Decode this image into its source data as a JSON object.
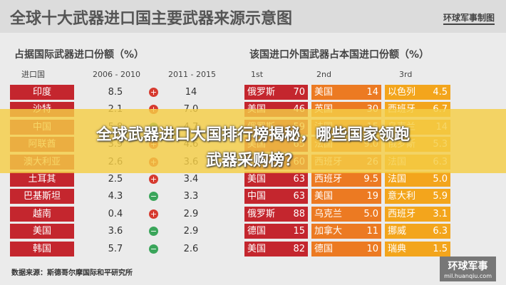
{
  "header": {
    "title": "全球十大武器进口国主要武器来源示意图",
    "logo": "环球军事制图"
  },
  "left": {
    "title": "占据国际武器进口份额（%）",
    "columns": [
      "进口国",
      "2006 - 2010",
      "2011 - 2015"
    ]
  },
  "right": {
    "title": "该国进口外国武器占本国进口份额（%）",
    "columns": [
      "1st",
      "2nd",
      "3rd"
    ]
  },
  "rows": [
    {
      "country": "印度",
      "p1": "8.5",
      "trend": "+",
      "p2": "14",
      "s": [
        [
          "俄罗斯",
          "70"
        ],
        [
          "美国",
          "14"
        ],
        [
          "以色列",
          "4.5"
        ]
      ]
    },
    {
      "country": "沙特",
      "p1": "2.1",
      "trend": "+",
      "p2": "7.0",
      "s": [
        [
          "美国",
          "46"
        ],
        [
          "英国",
          "30"
        ],
        [
          "西班牙",
          "6.7"
        ]
      ]
    },
    {
      "country": "中国",
      "p1": "5.8",
      "trend": "−",
      "p2": "4.7",
      "s": [
        [
          "俄罗斯",
          "59"
        ],
        [
          "法国",
          "15"
        ],
        [
          "乌克兰",
          "14"
        ]
      ]
    },
    {
      "country": "阿联酋",
      "p1": "3.9",
      "trend": "+",
      "p2": "4.6",
      "s": [
        [
          "美国",
          "65"
        ],
        [
          "法国",
          "9.0"
        ],
        [
          "俄罗斯",
          "5.3"
        ]
      ]
    },
    {
      "country": "澳大利亚",
      "p1": "2.6",
      "trend": "+",
      "p2": "3.6",
      "s": [
        [
          "美国",
          "60"
        ],
        [
          "西班牙",
          "26"
        ],
        [
          "法国",
          "6.3"
        ]
      ]
    },
    {
      "country": "土耳其",
      "p1": "2.5",
      "trend": "+",
      "p2": "3.4",
      "s": [
        [
          "美国",
          "63"
        ],
        [
          "西班牙",
          "9.5"
        ],
        [
          "法国",
          "5.0"
        ]
      ]
    },
    {
      "country": "巴基斯坦",
      "p1": "4.3",
      "trend": "−",
      "p2": "3.3",
      "s": [
        [
          "中国",
          "63"
        ],
        [
          "美国",
          "19"
        ],
        [
          "意大利",
          "5.9"
        ]
      ]
    },
    {
      "country": "越南",
      "p1": "0.4",
      "trend": "+",
      "p2": "2.9",
      "s": [
        [
          "俄罗斯",
          "88"
        ],
        [
          "乌克兰",
          "5.0"
        ],
        [
          "西班牙",
          "3.1"
        ]
      ]
    },
    {
      "country": "美国",
      "p1": "3.6",
      "trend": "−",
      "p2": "2.9",
      "s": [
        [
          "德国",
          "15"
        ],
        [
          "加拿大",
          "11"
        ],
        [
          "挪威",
          "6.3"
        ]
      ]
    },
    {
      "country": "韩国",
      "p1": "5.7",
      "trend": "−",
      "p2": "2.6",
      "s": [
        [
          "美国",
          "82"
        ],
        [
          "德国",
          "10"
        ],
        [
          "瑞典",
          "1.5"
        ]
      ]
    }
  ],
  "source": "数据来源：斯德哥尔摩国际和平研究所",
  "watermark": {
    "brand": "环球军事",
    "url": "mil.huanqiu.com"
  },
  "overlay": {
    "line1": "全球武器进口大国排行榜揭秘，哪些国家领跑",
    "line2": "武器采购榜？"
  }
}
